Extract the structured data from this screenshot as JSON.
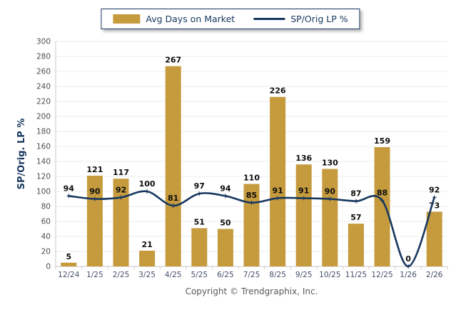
{
  "legend": {
    "bar_label": "Avg Days on Market",
    "line_label": "SP/Orig LP %"
  },
  "y_axis": {
    "title": "SP/Orig. LP %"
  },
  "footer": {
    "copyright": "Copyright © Trendgraphix, Inc."
  },
  "colors": {
    "bar": "#C59B3E",
    "line": "#17375E",
    "grid": "#ECECEC",
    "axis": "#C9C9C9",
    "y_tick_text": "#4D4D4D",
    "x_tick_text": "#44506B",
    "data_label_text": "#0D0D0D",
    "copyright_text": "#595959"
  },
  "chart_data": {
    "type": "bar+line",
    "categories": [
      "12/24",
      "1/25",
      "2/25",
      "3/25",
      "4/25",
      "5/25",
      "6/25",
      "7/25",
      "8/25",
      "9/25",
      "10/25",
      "11/25",
      "12/25",
      "1/26",
      "2/26"
    ],
    "series": [
      {
        "name": "Avg Days on Market",
        "type": "bar",
        "values": [
          5,
          121,
          117,
          21,
          267,
          51,
          50,
          110,
          226,
          136,
          130,
          57,
          159,
          0,
          73
        ]
      },
      {
        "name": "SP/Orig LP %",
        "type": "line",
        "values": [
          94,
          90,
          92,
          100,
          81,
          97,
          94,
          85,
          91,
          91,
          90,
          87,
          88,
          0,
          92
        ]
      }
    ],
    "title": "",
    "xlabel": "",
    "ylabel": "SP/Orig. LP %",
    "ylim": [
      0,
      300
    ],
    "ytick_step": 20,
    "grid": true,
    "legend_position": "top",
    "smooth_line": true
  }
}
